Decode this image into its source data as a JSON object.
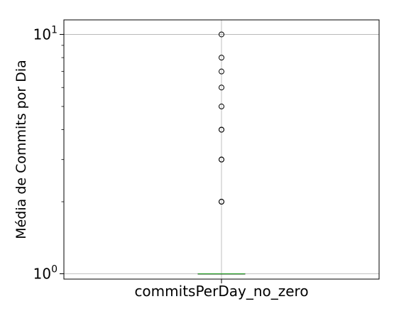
{
  "chart_data": {
    "type": "box",
    "title": "",
    "categories": [
      "commitsPerDay_no_zero"
    ],
    "xlabel": "",
    "ylabel": "Média de Commits por Dia",
    "yscale": "log",
    "ylim": [
      0.95,
      11.5
    ],
    "grid": true,
    "y_ticks": [
      {
        "value": 1,
        "base": "10",
        "exp": "0"
      },
      {
        "value": 10,
        "base": "10",
        "exp": "1"
      }
    ],
    "box": {
      "min": 1,
      "q1": 1,
      "median": 1,
      "q3": 1,
      "whisker_low": 1,
      "whisker_high": 1,
      "outliers": [
        2,
        2,
        3,
        3,
        4,
        4,
        5,
        6,
        7,
        8,
        10
      ]
    },
    "colors": {
      "median": "#2ca02c",
      "box": "#000000",
      "outlier": "#000000",
      "grid": "#b0b0b0",
      "axis": "#000000"
    }
  }
}
